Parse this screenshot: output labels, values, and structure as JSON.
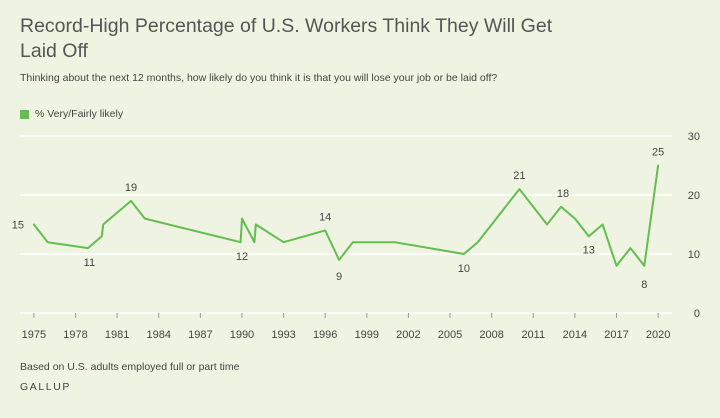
{
  "title": "Record-High Percentage of U.S. Workers Think They Will Get Laid Off",
  "subtitle": "Thinking about the next 12 months, how likely do you think it is that you will lose your job or be laid off?",
  "note": "Based on U.S. adults employed full or part time",
  "brand": "GALLUP",
  "colors": {
    "line": "#63bd4f",
    "grid": "#ffffff",
    "text": "#444444"
  },
  "chart_data": {
    "type": "line",
    "title": "Record-High Percentage of U.S. Workers Think They Will Get Laid Off",
    "xlabel": "",
    "ylabel": "",
    "xlim": [
      1974,
      2021
    ],
    "ylim": [
      0,
      30
    ],
    "grid": true,
    "legend_position": "top-left",
    "x_ticks": [
      1975,
      1978,
      1981,
      1984,
      1987,
      1990,
      1993,
      1996,
      1999,
      2002,
      2005,
      2008,
      2011,
      2014,
      2017,
      2020
    ],
    "y_ticks": [
      0,
      10,
      20,
      30
    ],
    "series": [
      {
        "name": "% Very/Fairly likely",
        "x": [
          1975,
          1976,
          1978.9,
          1979.9,
          1980,
          1982,
          1983,
          1989.9,
          1990,
          1990.9,
          1991,
          1993,
          1996,
          1997,
          1998,
          2001,
          2006,
          2007,
          2010,
          2012,
          2013,
          2014,
          2015,
          2016,
          2017,
          2018,
          2019,
          2020
        ],
        "values": [
          15,
          12,
          11,
          13,
          15,
          19,
          16,
          12,
          16,
          12,
          15,
          12,
          14,
          9,
          12,
          12,
          10,
          12,
          21,
          15,
          18,
          16,
          13,
          15,
          8,
          11,
          8,
          25
        ]
      }
    ],
    "data_labels": [
      {
        "x": 1975,
        "y": 15,
        "text": "15"
      },
      {
        "x": 1979,
        "y": 11,
        "text": "11"
      },
      {
        "x": 1982,
        "y": 19,
        "text": "19"
      },
      {
        "x": 1990,
        "y": 12,
        "text": "12"
      },
      {
        "x": 1996,
        "y": 14,
        "text": "14"
      },
      {
        "x": 1997,
        "y": 9,
        "text": "9"
      },
      {
        "x": 2006,
        "y": 10,
        "text": "10"
      },
      {
        "x": 2010,
        "y": 21,
        "text": "21"
      },
      {
        "x": 2013,
        "y": 18,
        "text": "18"
      },
      {
        "x": 2015,
        "y": 13,
        "text": "13"
      },
      {
        "x": 2019,
        "y": 8,
        "text": "8"
      },
      {
        "x": 2020,
        "y": 25,
        "text": "25"
      }
    ]
  }
}
